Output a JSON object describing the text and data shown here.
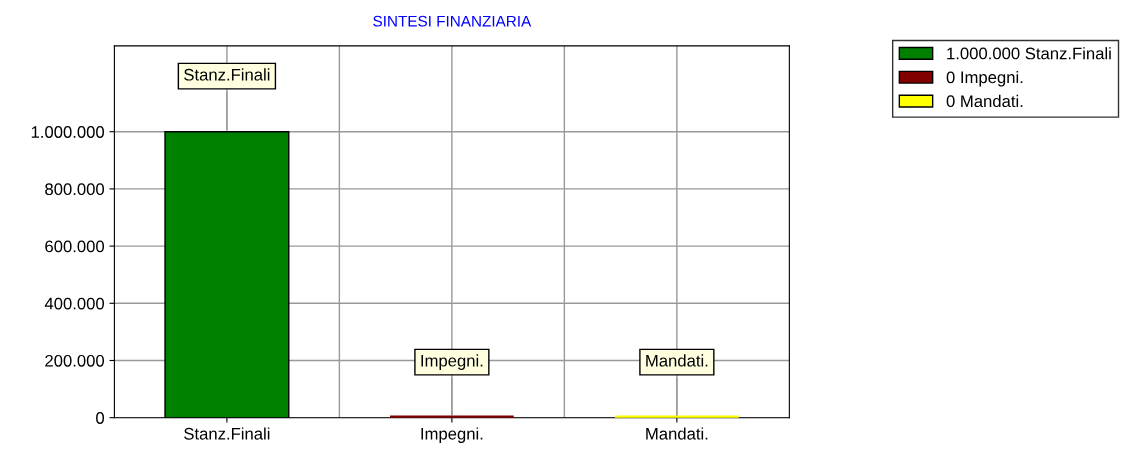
{
  "chart_data": {
    "type": "bar",
    "title": "SINTESI FINANZIARIA",
    "categories": [
      "Stanz.Finali",
      "Impegni.",
      "Mandati."
    ],
    "series": [
      {
        "name": "1.000.000 Stanz.Finali",
        "color": "#008000",
        "values": [
          1000000,
          null,
          null
        ]
      },
      {
        "name": "0 Impegni.",
        "color": "#800000",
        "values": [
          null,
          0,
          null
        ]
      },
      {
        "name": "0 Mandati.",
        "color": "#ffff00",
        "values": [
          null,
          null,
          0
        ]
      }
    ],
    "annotations": [
      {
        "text": "Stanz.Finali",
        "x": "Stanz.Finali",
        "y": 1000000
      },
      {
        "text": "Impegni.",
        "x": "Impegni.",
        "y": 0
      },
      {
        "text": "Mandati.",
        "x": "Mandati.",
        "y": 0
      }
    ],
    "ylim": [
      0,
      1300000
    ],
    "yticks": [
      {
        "value": 0,
        "label": "0"
      },
      {
        "value": 200000,
        "label": "200.000"
      },
      {
        "value": 400000,
        "label": "400.000"
      },
      {
        "value": 600000,
        "label": "600.000"
      },
      {
        "value": 800000,
        "label": "800.000"
      },
      {
        "value": 1000000,
        "label": "1.000.000"
      }
    ],
    "grid": true,
    "legend": "top right"
  }
}
